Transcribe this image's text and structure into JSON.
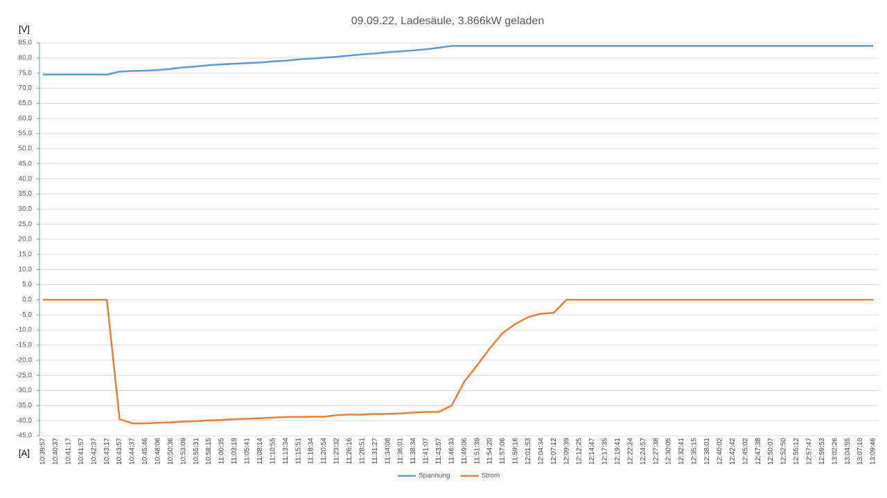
{
  "chart_data": {
    "type": "line",
    "title": "09.09.22, Ladesäule, 3.866kW geladen",
    "y_label_top": "[V]",
    "y_label_bottom": "[A]",
    "categories": [
      "10:39:57",
      "10:40:37",
      "10:41:17",
      "10:41:57",
      "10:42:37",
      "10:43:17",
      "10:43:57",
      "10:44:37",
      "10:45:46",
      "10:48:06",
      "10:50:36",
      "10:53:09",
      "10:55:31",
      "10:58:15",
      "11:00:35",
      "11:03:19",
      "11:05:41",
      "11:08:14",
      "11:10:55",
      "11:13:34",
      "11:15:51",
      "11:18:34",
      "11:20:54",
      "11:23:32",
      "11:26:16",
      "11:28:51",
      "11:31:27",
      "11:34:08",
      "11:36:01",
      "11:38:34",
      "11:41:07",
      "11:43:57",
      "11:46:33",
      "11:49:06",
      "11:51:39",
      "11:54:20",
      "11:57:06",
      "11:59:16",
      "12:01:53",
      "12:04:34",
      "12:07:12",
      "12:09:39",
      "12:12:25",
      "12:14:47",
      "12:17:35",
      "12:19:41",
      "12:22:24",
      "12:24:57",
      "12:27:38",
      "12:30:05",
      "12:32:41",
      "12:35:15",
      "12:38:01",
      "12:40:02",
      "12:42:42",
      "12:45:02",
      "12:47:38",
      "12:50:07",
      "12:52:50",
      "12:55:12",
      "12:57:47",
      "12:59:53",
      "13:02:26",
      "13:04:55",
      "13:07:10",
      "13:09:46"
    ],
    "series": [
      {
        "name": "Spannung",
        "color": "#5b9bd5",
        "values": [
          74.5,
          74.5,
          74.5,
          74.5,
          74.5,
          74.5,
          75.5,
          75.7,
          75.8,
          76.0,
          76.4,
          76.9,
          77.2,
          77.6,
          77.9,
          78.1,
          78.3,
          78.5,
          78.9,
          79.1,
          79.5,
          79.8,
          80.1,
          80.4,
          80.8,
          81.2,
          81.5,
          81.9,
          82.2,
          82.5,
          82.9,
          83.4,
          84,
          84,
          84,
          84,
          84,
          84,
          84,
          84,
          84,
          84,
          84,
          84,
          84,
          84,
          84,
          84,
          84,
          84,
          84,
          84,
          84,
          84,
          84,
          84,
          84,
          84,
          84,
          84,
          84,
          84,
          84,
          84,
          84,
          84
        ]
      },
      {
        "name": "Strom",
        "color": "#ed7d31",
        "values": [
          0,
          0,
          0,
          0,
          0,
          0,
          -39.5,
          -40.9,
          -40.9,
          -40.7,
          -40.6,
          -40.3,
          -40.2,
          -39.9,
          -39.8,
          -39.5,
          -39.4,
          -39.2,
          -39.0,
          -38.8,
          -38.8,
          -38.7,
          -38.7,
          -38.2,
          -38.0,
          -38.0,
          -37.8,
          -37.8,
          -37.6,
          -37.3,
          -37.1,
          -37.1,
          -35.0,
          -27.0,
          -21.7,
          -16.0,
          -11.0,
          -8.0,
          -5.7,
          -4.6,
          -4.3,
          0,
          0,
          0,
          0,
          0,
          0,
          0,
          0,
          0,
          0,
          0,
          0,
          0,
          0,
          0,
          0,
          0,
          0,
          0,
          0,
          0,
          0,
          0,
          0,
          0
        ]
      }
    ],
    "ylim": [
      -45,
      85
    ],
    "yticks": [
      {
        "value": 85,
        "label": "85,0"
      },
      {
        "value": 80,
        "label": "80,0"
      },
      {
        "value": 75,
        "label": "75,0"
      },
      {
        "value": 70,
        "label": "70,0"
      },
      {
        "value": 65,
        "label": "65,0"
      },
      {
        "value": 60,
        "label": "60,0"
      },
      {
        "value": 55,
        "label": "55,0"
      },
      {
        "value": 50,
        "label": "50,0"
      },
      {
        "value": 45,
        "label": "45,0"
      },
      {
        "value": 40,
        "label": "40,0"
      },
      {
        "value": 35,
        "label": "35,0"
      },
      {
        "value": 30,
        "label": "30,0"
      },
      {
        "value": 25,
        "label": "25,0"
      },
      {
        "value": 20,
        "label": "20,0"
      },
      {
        "value": 15,
        "label": "15,0"
      },
      {
        "value": 10,
        "label": "10,0"
      },
      {
        "value": 5,
        "label": "5,0"
      },
      {
        "value": 0,
        "label": "0,0"
      },
      {
        "value": -5,
        "label": "-5,0"
      },
      {
        "value": -10,
        "label": "-10,0"
      },
      {
        "value": -15,
        "label": "-15,0"
      },
      {
        "value": -20,
        "label": "-20,0"
      },
      {
        "value": -25,
        "label": "-25,0"
      },
      {
        "value": -30,
        "label": "-30,0"
      },
      {
        "value": -35,
        "label": "-35,0"
      },
      {
        "value": -40,
        "label": "-40,0"
      },
      {
        "value": -45,
        "label": "-45,0"
      }
    ],
    "grid": true,
    "legend": "bottom"
  }
}
